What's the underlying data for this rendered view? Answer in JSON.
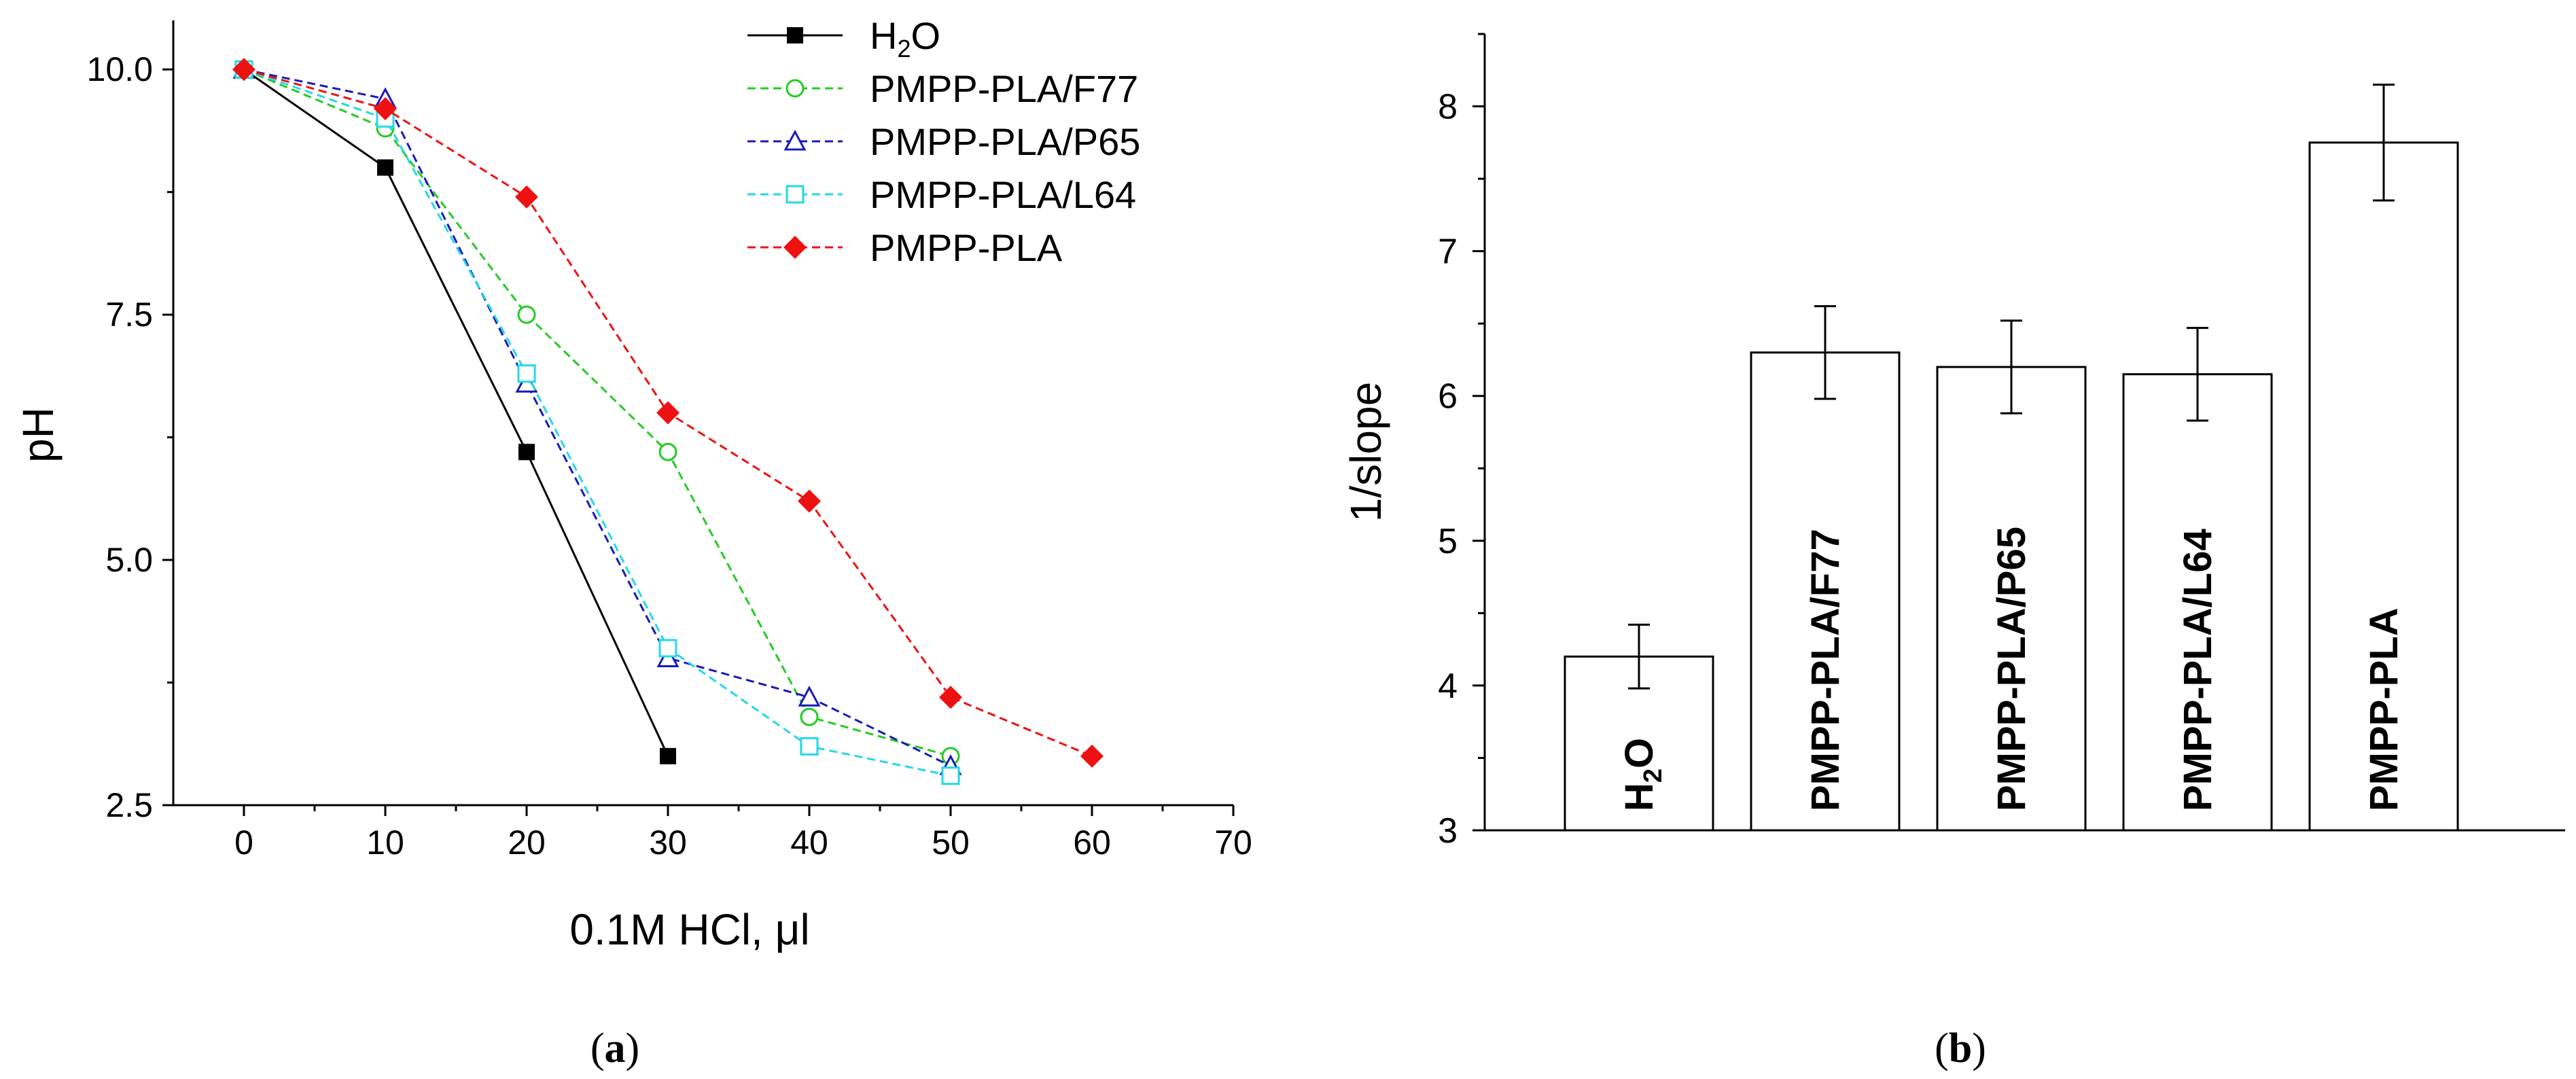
{
  "chart_data": [
    {
      "type": "line",
      "panel_label": "(a)",
      "panel_label_parts": {
        "open": "(",
        "letter": "a",
        "close": ")"
      },
      "xlabel": "0.1M HCl, μl",
      "ylabel": "pH",
      "xlim": [
        -5,
        70
      ],
      "ylim": [
        2.5,
        10.5
      ],
      "xticks": [
        0,
        10,
        20,
        30,
        40,
        50,
        60,
        70
      ],
      "yticks": [
        2.5,
        5.0,
        7.5,
        10.0
      ],
      "ytick_labels": [
        "2.5",
        "5.0",
        "7.5",
        "10.0"
      ],
      "legend_position": "top-right",
      "series": [
        {
          "name": "H2O",
          "label_main": "H",
          "label_sub": "2",
          "label_tail": "O",
          "color": "#000000",
          "marker": "square-filled",
          "dash": "solid",
          "x": [
            0,
            10,
            20,
            30
          ],
          "y": [
            10.0,
            9.0,
            6.1,
            3.0
          ]
        },
        {
          "name": "PMPP-PLA/F77",
          "color": "#22cc22",
          "marker": "circle-open",
          "dash": "dashed",
          "x": [
            0,
            10,
            20,
            30,
            40,
            50
          ],
          "y": [
            10.0,
            9.4,
            7.5,
            6.1,
            3.4,
            3.0
          ]
        },
        {
          "name": "PMPP-PLA/P65",
          "color": "#1a1ab8",
          "marker": "triangle-open",
          "dash": "dashed",
          "x": [
            0,
            10,
            20,
            30,
            40,
            50
          ],
          "y": [
            10.0,
            9.7,
            6.8,
            4.0,
            3.6,
            2.9
          ]
        },
        {
          "name": "PMPP-PLA/L64",
          "color": "#22d8e8",
          "marker": "square-open",
          "dash": "dashed",
          "x": [
            0,
            10,
            20,
            30,
            40,
            50
          ],
          "y": [
            10.0,
            9.5,
            6.9,
            4.1,
            3.1,
            2.8
          ]
        },
        {
          "name": "PMPP-PLA",
          "color": "#ee1111",
          "marker": "diamond-filled",
          "dash": "dashed",
          "x": [
            0,
            10,
            20,
            30,
            40,
            50,
            60
          ],
          "y": [
            10.0,
            9.6,
            8.7,
            6.5,
            5.6,
            3.6,
            3.0
          ]
        }
      ]
    },
    {
      "type": "bar",
      "panel_label": "(b)",
      "panel_label_parts": {
        "open": "(",
        "letter": "b",
        "close": ")"
      },
      "ylabel": "1/slope",
      "ylim": [
        3,
        8.5
      ],
      "yticks": [
        3,
        4,
        5,
        6,
        7,
        8
      ],
      "ytick_labels": [
        "3",
        "4",
        "5",
        "6",
        "7",
        "8"
      ],
      "categories": [
        {
          "name": "H2O",
          "label_main": "H",
          "label_sub": "2",
          "label_tail": "O"
        },
        {
          "name": "PMPP-PLA/F77"
        },
        {
          "name": "PMPP-PLA/P65"
        },
        {
          "name": "PMPP-PLA/L64"
        },
        {
          "name": "PMPP-PLA"
        }
      ],
      "values": [
        4.2,
        6.3,
        6.2,
        6.15,
        7.75
      ],
      "errors": [
        0.22,
        0.32,
        0.32,
        0.32,
        0.4
      ]
    }
  ]
}
